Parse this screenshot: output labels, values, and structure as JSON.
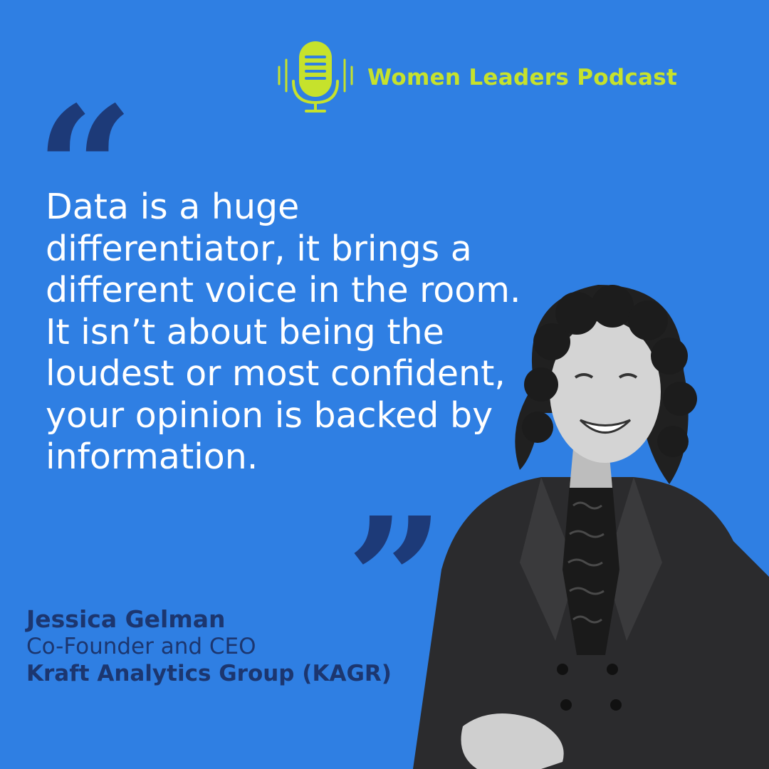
{
  "brand": {
    "name": "Women Leaders Podcast",
    "icon": "microphone-icon",
    "accent_color": "#c6e22c"
  },
  "background_color": "#2f7fe3",
  "quote": {
    "open_mark": "“",
    "close_mark": "”",
    "text": "Data is a huge differentiator, it brings a different voice in the room. It isn’t about being the loudest or most confident, your opinion is backed by information.",
    "mark_color": "#1d3a78"
  },
  "speaker": {
    "name": "Jessica Gelman",
    "title": "Co-Founder and CEO",
    "organization": "Kraft Analytics Group (KAGR)",
    "text_color": "#1c366f"
  },
  "portrait": {
    "description_icon": "speaker-photo"
  }
}
